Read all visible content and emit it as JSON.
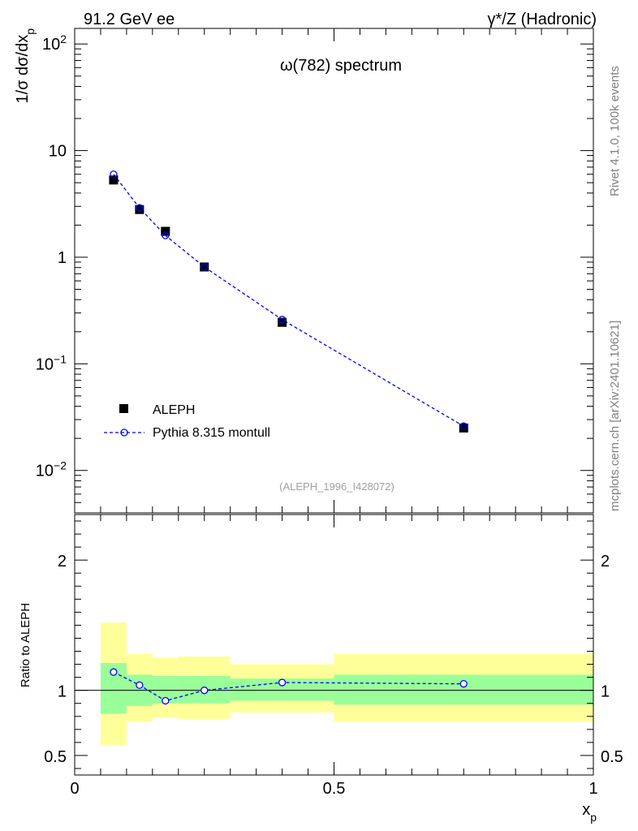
{
  "header": {
    "left_label": "91.2 GeV ee",
    "right_label": "γ*/Z (Hadronic)"
  },
  "side_labels": {
    "top": "Rivet 4.1.0,  100k events",
    "bottom": "mcplots.cern.ch [arXiv:2401.10621]"
  },
  "chart_data": [
    {
      "type": "scatter",
      "panel": "main",
      "title": "ω(782) spectrum",
      "ylabel": "1/σ  dσ/dx_p",
      "yscale": "log",
      "ylim": [
        0.004,
        140
      ],
      "xlim": [
        0,
        1
      ],
      "watermark": "(ALEPH_1996_I428072)",
      "y_tick_labels": [
        "10^-2",
        "10^-1",
        "1",
        "10",
        "10^2"
      ],
      "legend": {
        "placement": "bottom-left",
        "entries": [
          "ALEPH",
          "Pythia 8.315 montull"
        ]
      },
      "series": [
        {
          "name": "ALEPH",
          "marker": "filled-square",
          "color": "#000000",
          "x": [
            0.075,
            0.125,
            0.175,
            0.25,
            0.4,
            0.75
          ],
          "y": [
            5.3,
            2.8,
            1.75,
            0.81,
            0.245,
            0.025
          ]
        },
        {
          "name": "Pythia 8.315 montull",
          "marker": "open-circle",
          "line": "dashed",
          "color": "#0000ff",
          "x": [
            0.075,
            0.125,
            0.175,
            0.25,
            0.4,
            0.75
          ],
          "y": [
            6.0,
            2.9,
            1.6,
            0.81,
            0.26,
            0.026
          ]
        }
      ]
    },
    {
      "type": "scatter",
      "panel": "ratio",
      "ylabel": "Ratio to ALEPH",
      "xlabel": "x_p",
      "xlim": [
        0,
        1
      ],
      "ylim": [
        0.35,
        2.35
      ],
      "x_tick_labels": [
        "0",
        "0.5",
        "1"
      ],
      "y_tick_labels": [
        "0.5",
        "1",
        "2"
      ],
      "reference_line": 1,
      "bands": [
        {
          "x0": 0.05,
          "x1": 0.1,
          "inner": [
            0.82,
            1.21
          ],
          "outer": [
            0.58,
            1.52
          ]
        },
        {
          "x0": 0.1,
          "x1": 0.15,
          "inner": [
            0.88,
            1.12
          ],
          "outer": [
            0.76,
            1.28
          ]
        },
        {
          "x0": 0.15,
          "x1": 0.2,
          "inner": [
            0.9,
            1.11
          ],
          "outer": [
            0.79,
            1.25
          ]
        },
        {
          "x0": 0.2,
          "x1": 0.3,
          "inner": [
            0.9,
            1.11
          ],
          "outer": [
            0.78,
            1.26
          ]
        },
        {
          "x0": 0.3,
          "x1": 0.5,
          "inner": [
            0.92,
            1.09
          ],
          "outer": [
            0.83,
            1.2
          ]
        },
        {
          "x0": 0.5,
          "x1": 1.0,
          "inner": [
            0.89,
            1.12
          ],
          "outer": [
            0.76,
            1.28
          ]
        }
      ],
      "series": [
        {
          "name": "Pythia 8.315 montull / ALEPH",
          "marker": "open-circle",
          "line": "dashed",
          "color": "#0000ff",
          "x": [
            0.075,
            0.125,
            0.175,
            0.25,
            0.4,
            0.75
          ],
          "y": [
            1.14,
            1.04,
            0.92,
            1.0,
            1.06,
            1.05
          ]
        }
      ]
    }
  ]
}
